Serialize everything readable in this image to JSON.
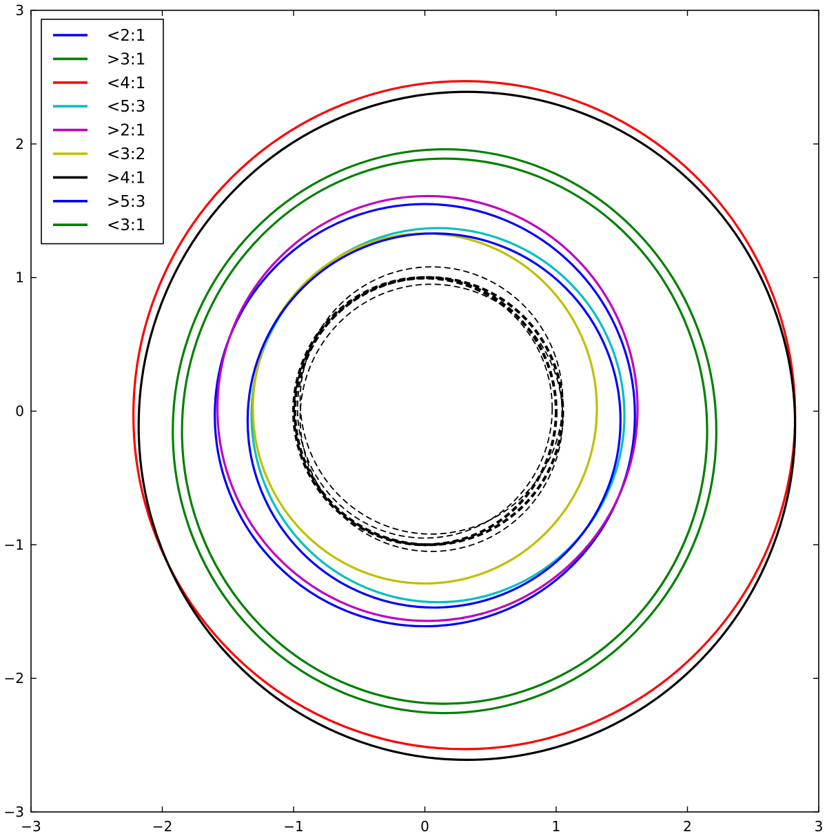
{
  "chart_data": {
    "type": "line",
    "title": "",
    "xlabel": "",
    "ylabel": "",
    "xlim": [
      -3,
      3
    ],
    "ylim": [
      -3,
      3
    ],
    "grid": false,
    "legend_position": "top-left",
    "xticks": [
      "−3",
      "−2",
      "−1",
      "0",
      "1",
      "2",
      "3"
    ],
    "yticks": [
      "3",
      "2",
      "1",
      "0",
      "−1",
      "−2",
      "−3"
    ],
    "series": [
      {
        "name": "<2:1",
        "color": "#0000ff",
        "style": "solid",
        "cx": 0.0,
        "cy": -0.03,
        "rx": 1.6,
        "ry": 1.58
      },
      {
        "name": ">3:1",
        "color": "#008000",
        "style": "solid",
        "cx": 0.15,
        "cy": -0.15,
        "rx": 2.07,
        "ry": 2.11
      },
      {
        "name": "<4:1",
        "color": "#ff0000",
        "style": "solid",
        "cx": 0.3,
        "cy": -0.03,
        "rx": 2.52,
        "ry": 2.5
      },
      {
        "name": "<5:3",
        "color": "#00bfbf",
        "style": "solid",
        "cx": 0.1,
        "cy": -0.03,
        "rx": 1.42,
        "ry": 1.4
      },
      {
        "name": ">2:1",
        "color": "#bf00bf",
        "style": "solid",
        "cx": 0.02,
        "cy": 0.02,
        "rx": 1.6,
        "ry": 1.59
      },
      {
        "name": "<3:2",
        "color": "#bfbf00",
        "style": "solid",
        "cx": 0.0,
        "cy": 0.02,
        "rx": 1.31,
        "ry": 1.31
      },
      {
        "name": ">4:1",
        "color": "#000000",
        "style": "solid",
        "cx": 0.32,
        "cy": -0.11,
        "rx": 2.5,
        "ry": 2.5
      },
      {
        "name": ">5:3",
        "color": "#0000ff",
        "style": "solid",
        "cx": 0.07,
        "cy": -0.07,
        "rx": 1.42,
        "ry": 1.4
      },
      {
        "name": "<3:1",
        "color": "#008000",
        "style": "solid",
        "cx": 0.15,
        "cy": -0.15,
        "rx": 2.0,
        "ry": 2.04
      }
    ],
    "dashed_circles": [
      {
        "color": "#000000",
        "cx": 0.0,
        "cy": 0.0,
        "rx": 1.0,
        "ry": 1.0,
        "width": 4
      },
      {
        "color": "#000000",
        "cx": 0.03,
        "cy": 0.0,
        "rx": 1.02,
        "ry": 1.0,
        "width": 4
      },
      {
        "color": "#000000",
        "cx": 0.05,
        "cy": 0.08,
        "rx": 1.0,
        "ry": 1.0,
        "width": 1.8
      },
      {
        "color": "#000000",
        "cx": 0.05,
        "cy": -0.05,
        "rx": 1.0,
        "ry": 1.0,
        "width": 1.8
      },
      {
        "color": "#000000",
        "cx": 0.0,
        "cy": 0.02,
        "rx": 0.97,
        "ry": 0.97,
        "width": 1.8
      }
    ]
  }
}
